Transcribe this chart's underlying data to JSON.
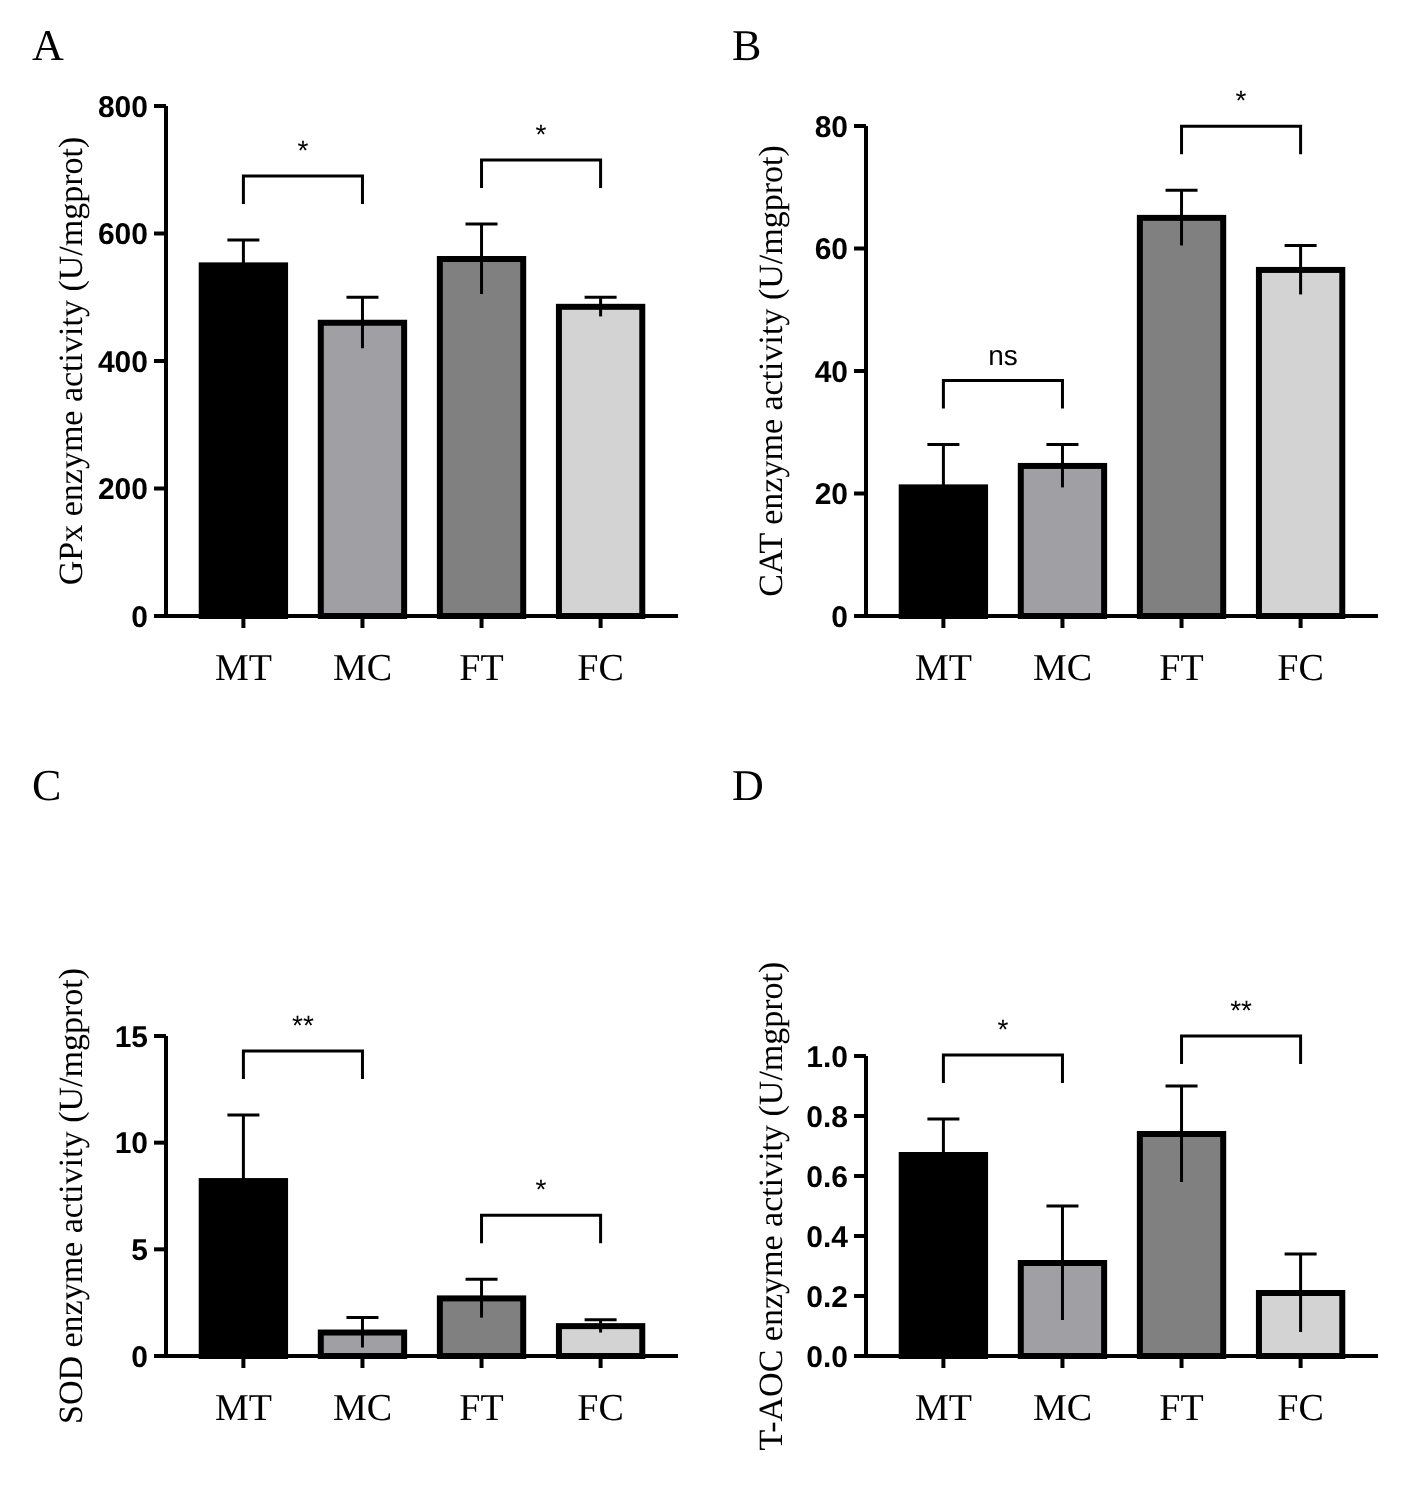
{
  "chart_data": [
    {
      "type": "bar",
      "title": "A",
      "ylabel": "GPx enzyme activity (U/mgprot)",
      "categories": [
        "MT",
        "MC",
        "FT",
        "FC"
      ],
      "values": [
        550,
        460,
        560,
        485
      ],
      "errors": [
        40,
        40,
        55,
        15
      ],
      "colors": [
        "#000000",
        "#a0a0a4",
        "#808080",
        "#d3d3d3"
      ],
      "ylim": [
        0,
        800
      ],
      "yticks": [
        0,
        200,
        400,
        600,
        800
      ],
      "annotations": [
        "*",
        "*"
      ]
    },
    {
      "type": "bar",
      "title": "B",
      "ylabel": "CAT enzyme activity (U/mgprot)",
      "categories": [
        "MT",
        "MC",
        "FT",
        "FC"
      ],
      "values": [
        21,
        24.5,
        65,
        56.5
      ],
      "errors": [
        7,
        3.5,
        4.5,
        4
      ],
      "colors": [
        "#000000",
        "#a0a0a4",
        "#808080",
        "#d3d3d3"
      ],
      "ylim": [
        0,
        80
      ],
      "yticks": [
        0,
        20,
        40,
        60,
        80
      ],
      "annotations": [
        "ns",
        "*"
      ]
    },
    {
      "type": "bar",
      "title": "C",
      "ylabel": "SOD enzyme activity (U/mgprot)",
      "categories": [
        "MT",
        "MC",
        "FT",
        "FC"
      ],
      "values": [
        8.2,
        1.1,
        2.7,
        1.4
      ],
      "errors": [
        3.1,
        0.7,
        0.9,
        0.3
      ],
      "colors": [
        "#000000",
        "#a0a0a4",
        "#808080",
        "#d3d3d3"
      ],
      "ylim": [
        0,
        15
      ],
      "yticks": [
        0,
        5,
        10,
        15
      ],
      "annotations": [
        "**",
        "*"
      ]
    },
    {
      "type": "bar",
      "title": "D",
      "ylabel": "T-AOC enzyme activity (U/mgprot)",
      "categories": [
        "MT",
        "MC",
        "FT",
        "FC"
      ],
      "values": [
        0.67,
        0.31,
        0.74,
        0.21
      ],
      "errors": [
        0.12,
        0.19,
        0.16,
        0.13
      ],
      "colors": [
        "#000000",
        "#a0a0a4",
        "#808080",
        "#d3d3d3"
      ],
      "ylim": [
        0,
        1.0
      ],
      "yticks": [
        {
          "value": 0,
          "label": "0.0"
        },
        {
          "value": 0.2,
          "label": "0.2"
        },
        {
          "value": 0.4,
          "label": "0.4"
        },
        {
          "value": 0.6,
          "label": "0.6"
        },
        {
          "value": 0.8,
          "label": "0.8"
        },
        {
          "value": 1.0,
          "label": "1.0"
        }
      ],
      "annotations": [
        "*",
        "**"
      ]
    }
  ]
}
